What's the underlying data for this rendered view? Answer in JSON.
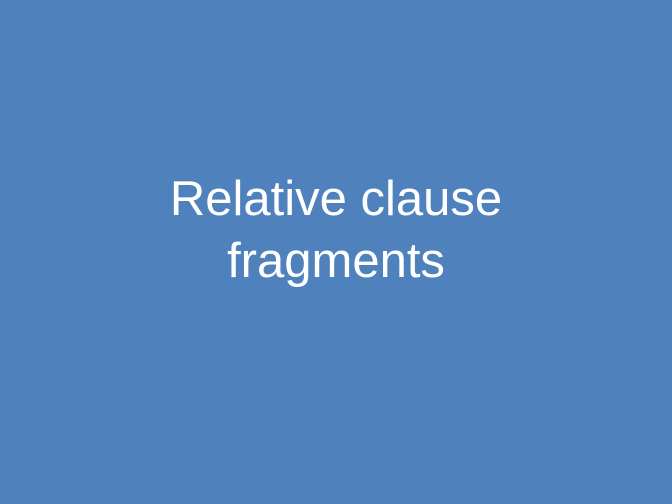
{
  "slide": {
    "title_lines": [
      "Relative clause",
      "fragments"
    ],
    "colors": {
      "background": "#4F81BD",
      "text": "#FFFFFF"
    }
  }
}
